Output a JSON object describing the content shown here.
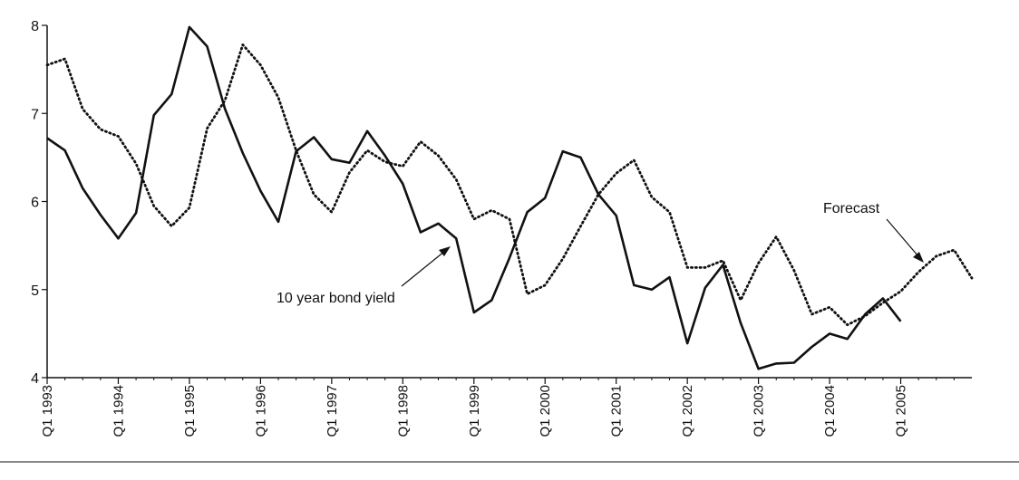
{
  "chart_data": {
    "type": "line",
    "title": "",
    "xlabel": "",
    "ylabel": "",
    "ylim": [
      4,
      8
    ],
    "yticks": [
      4,
      5,
      6,
      7,
      8
    ],
    "xlim": [
      1993.0,
      2006.0
    ],
    "xticks": [
      {
        "value": 1993.0,
        "label": "Q1 1993"
      },
      {
        "value": 1994.0,
        "label": "Q1 1994"
      },
      {
        "value": 1995.0,
        "label": "Q1 1995"
      },
      {
        "value": 1996.0,
        "label": "Q1 1996"
      },
      {
        "value": 1997.0,
        "label": "Q1 1997"
      },
      {
        "value": 1998.0,
        "label": "Q1 1998"
      },
      {
        "value": 1999.0,
        "label": "Q1 1999"
      },
      {
        "value": 2000.0,
        "label": "Q1 2000"
      },
      {
        "value": 2001.0,
        "label": "Q1 2001"
      },
      {
        "value": 2002.0,
        "label": "Q1 2002"
      },
      {
        "value": 2003.0,
        "label": "Q1 2003"
      },
      {
        "value": 2004.0,
        "label": "Q1 2004"
      },
      {
        "value": 2005.0,
        "label": "Q1 2005"
      }
    ],
    "series": [
      {
        "name": "10 year bond yield",
        "style": "solid",
        "color": "#111111",
        "x": [
          1993.0,
          1993.25,
          1993.5,
          1993.75,
          1994.0,
          1994.25,
          1994.5,
          1994.75,
          1995.0,
          1995.25,
          1995.5,
          1995.75,
          1996.0,
          1996.25,
          1996.5,
          1996.75,
          1997.0,
          1997.25,
          1997.5,
          1997.75,
          1998.0,
          1998.25,
          1998.5,
          1998.75,
          1999.0,
          1999.25,
          1999.5,
          1999.75,
          2000.0,
          2000.25,
          2000.5,
          2000.75,
          2001.0,
          2001.25,
          2001.5,
          2001.75,
          2002.0,
          2002.25,
          2002.5,
          2002.75,
          2003.0,
          2003.25,
          2003.5,
          2003.75,
          2004.0,
          2004.25,
          2004.5,
          2004.75,
          2005.0,
          2005.25
        ],
        "y": [
          6.72,
          6.58,
          6.15,
          5.85,
          5.58,
          5.87,
          6.98,
          7.22,
          7.98,
          7.76,
          7.05,
          6.55,
          6.12,
          5.77,
          6.57,
          6.73,
          6.48,
          6.44,
          6.8,
          6.52,
          6.2,
          5.65,
          5.75,
          5.58,
          4.74,
          4.88,
          5.36,
          5.88,
          6.04,
          6.57,
          6.5,
          6.08,
          5.84,
          5.05,
          5.0,
          5.14,
          4.39,
          5.02,
          5.28,
          4.62,
          4.1,
          4.16,
          4.17,
          4.35,
          4.5,
          4.44,
          4.72,
          4.9,
          4.64,
          null
        ]
      },
      {
        "name": "Forecast",
        "style": "dotted",
        "color": "#111111",
        "x": [
          1993.0,
          1993.25,
          1993.5,
          1993.75,
          1994.0,
          1994.25,
          1994.5,
          1994.75,
          1995.0,
          1995.25,
          1995.5,
          1995.75,
          1996.0,
          1996.25,
          1996.5,
          1996.75,
          1997.0,
          1997.25,
          1997.5,
          1997.75,
          1998.0,
          1998.25,
          1998.5,
          1998.75,
          1999.0,
          1999.25,
          1999.5,
          1999.75,
          2000.0,
          2000.25,
          2000.5,
          2000.75,
          2001.0,
          2001.25,
          2001.5,
          2001.75,
          2002.0,
          2002.25,
          2002.5,
          2002.75,
          2003.0,
          2003.25,
          2003.5,
          2003.75,
          2004.0,
          2004.25,
          2004.5,
          2004.75,
          2005.0,
          2005.25,
          2005.5,
          2005.75,
          2006.0
        ],
        "y": [
          7.55,
          7.62,
          7.05,
          6.82,
          6.74,
          6.43,
          5.95,
          5.72,
          5.93,
          6.83,
          7.15,
          7.78,
          7.55,
          7.18,
          6.58,
          6.08,
          5.88,
          6.33,
          6.58,
          6.45,
          6.4,
          6.68,
          6.52,
          6.25,
          5.8,
          5.9,
          5.8,
          4.95,
          5.05,
          5.35,
          5.72,
          6.08,
          6.32,
          6.47,
          6.05,
          5.88,
          5.25,
          5.25,
          5.33,
          4.88,
          5.3,
          5.6,
          5.22,
          4.72,
          4.8,
          4.6,
          4.7,
          4.85,
          4.98,
          5.2,
          5.38,
          5.45,
          5.13
        ]
      }
    ],
    "annotations": [
      {
        "text": "10 year bond yield",
        "points_to_series": "10 year bond yield"
      },
      {
        "text": "Forecast",
        "points_to_series": "Forecast"
      }
    ]
  }
}
